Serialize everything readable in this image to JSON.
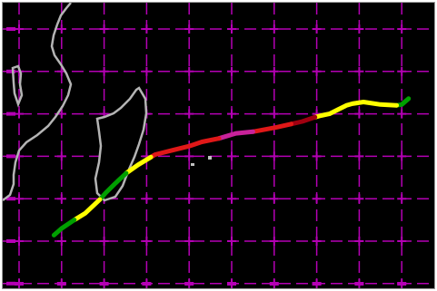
{
  "colors": {
    "background": "#000000",
    "grid": "#b400b4",
    "coastline": "#b4b4b4",
    "island_fill": "#000000"
  },
  "map": {
    "lat_ticks": [
      -10,
      -15,
      -20,
      -25,
      -30,
      -35,
      -40
    ],
    "lon_ticks": [
      40,
      45,
      50,
      55,
      60,
      65,
      70,
      75,
      80,
      85,
      90
    ],
    "tick_labels_legible": false,
    "track_intensity_colors": {
      "tropical_depression": "#00a000",
      "tropical_storm": "#ffff00",
      "category_1": "#e01818",
      "category_2": "#c8229a",
      "category_3": "#a00010"
    },
    "track": [
      {
        "seg": "tropical_depression",
        "color": "#00a000",
        "pts": [
          [
            85.8,
            -18.2
          ],
          [
            85.0,
            -18.9
          ],
          [
            84.4,
            -19.0
          ]
        ]
      },
      {
        "seg": "tropical_storm",
        "color": "#ffff00",
        "pts": [
          [
            84.4,
            -19.0
          ],
          [
            82.5,
            -18.9
          ],
          [
            80.5,
            -18.6
          ],
          [
            79.2,
            -18.8
          ],
          [
            78.5,
            -19.0
          ],
          [
            77.5,
            -19.5
          ],
          [
            76.5,
            -20.0
          ],
          [
            75.5,
            -20.2
          ],
          [
            74.8,
            -20.4
          ]
        ]
      },
      {
        "seg": "category_3",
        "color": "#a00010",
        "pts": [
          [
            74.8,
            -20.4
          ],
          [
            73.3,
            -20.9
          ],
          [
            72.0,
            -21.2
          ]
        ]
      },
      {
        "seg": "category_1",
        "color": "#e01818",
        "pts": [
          [
            72.0,
            -21.2
          ],
          [
            70.2,
            -21.6
          ],
          [
            67.5,
            -22.1
          ]
        ]
      },
      {
        "seg": "category_2",
        "color": "#c8229a",
        "pts": [
          [
            67.5,
            -22.1
          ],
          [
            65.5,
            -22.3
          ],
          [
            63.5,
            -22.9
          ]
        ]
      },
      {
        "seg": "category_1",
        "color": "#e01818",
        "pts": [
          [
            63.5,
            -22.9
          ],
          [
            61.5,
            -23.3
          ],
          [
            60.0,
            -23.8
          ],
          [
            58.0,
            -24.3
          ],
          [
            56.0,
            -24.8
          ],
          [
            55.5,
            -25.1
          ]
        ]
      },
      {
        "seg": "tropical_storm",
        "color": "#ffff00",
        "pts": [
          [
            55.5,
            -25.1
          ],
          [
            54.0,
            -26.0
          ],
          [
            52.6,
            -27.0
          ]
        ]
      },
      {
        "seg": "tropical_depression",
        "color": "#00a000",
        "pts": [
          [
            52.6,
            -27.0
          ],
          [
            51.3,
            -28.2
          ],
          [
            50.2,
            -29.3
          ],
          [
            49.5,
            -30.1
          ]
        ]
      },
      {
        "seg": "tropical_storm",
        "color": "#ffff00",
        "pts": [
          [
            49.5,
            -30.1
          ],
          [
            47.8,
            -31.7
          ],
          [
            46.5,
            -32.5
          ]
        ]
      },
      {
        "seg": "tropical_depression",
        "color": "#00a000",
        "pts": [
          [
            46.5,
            -32.5
          ],
          [
            45.0,
            -33.5
          ],
          [
            44.1,
            -34.3
          ]
        ]
      }
    ]
  }
}
